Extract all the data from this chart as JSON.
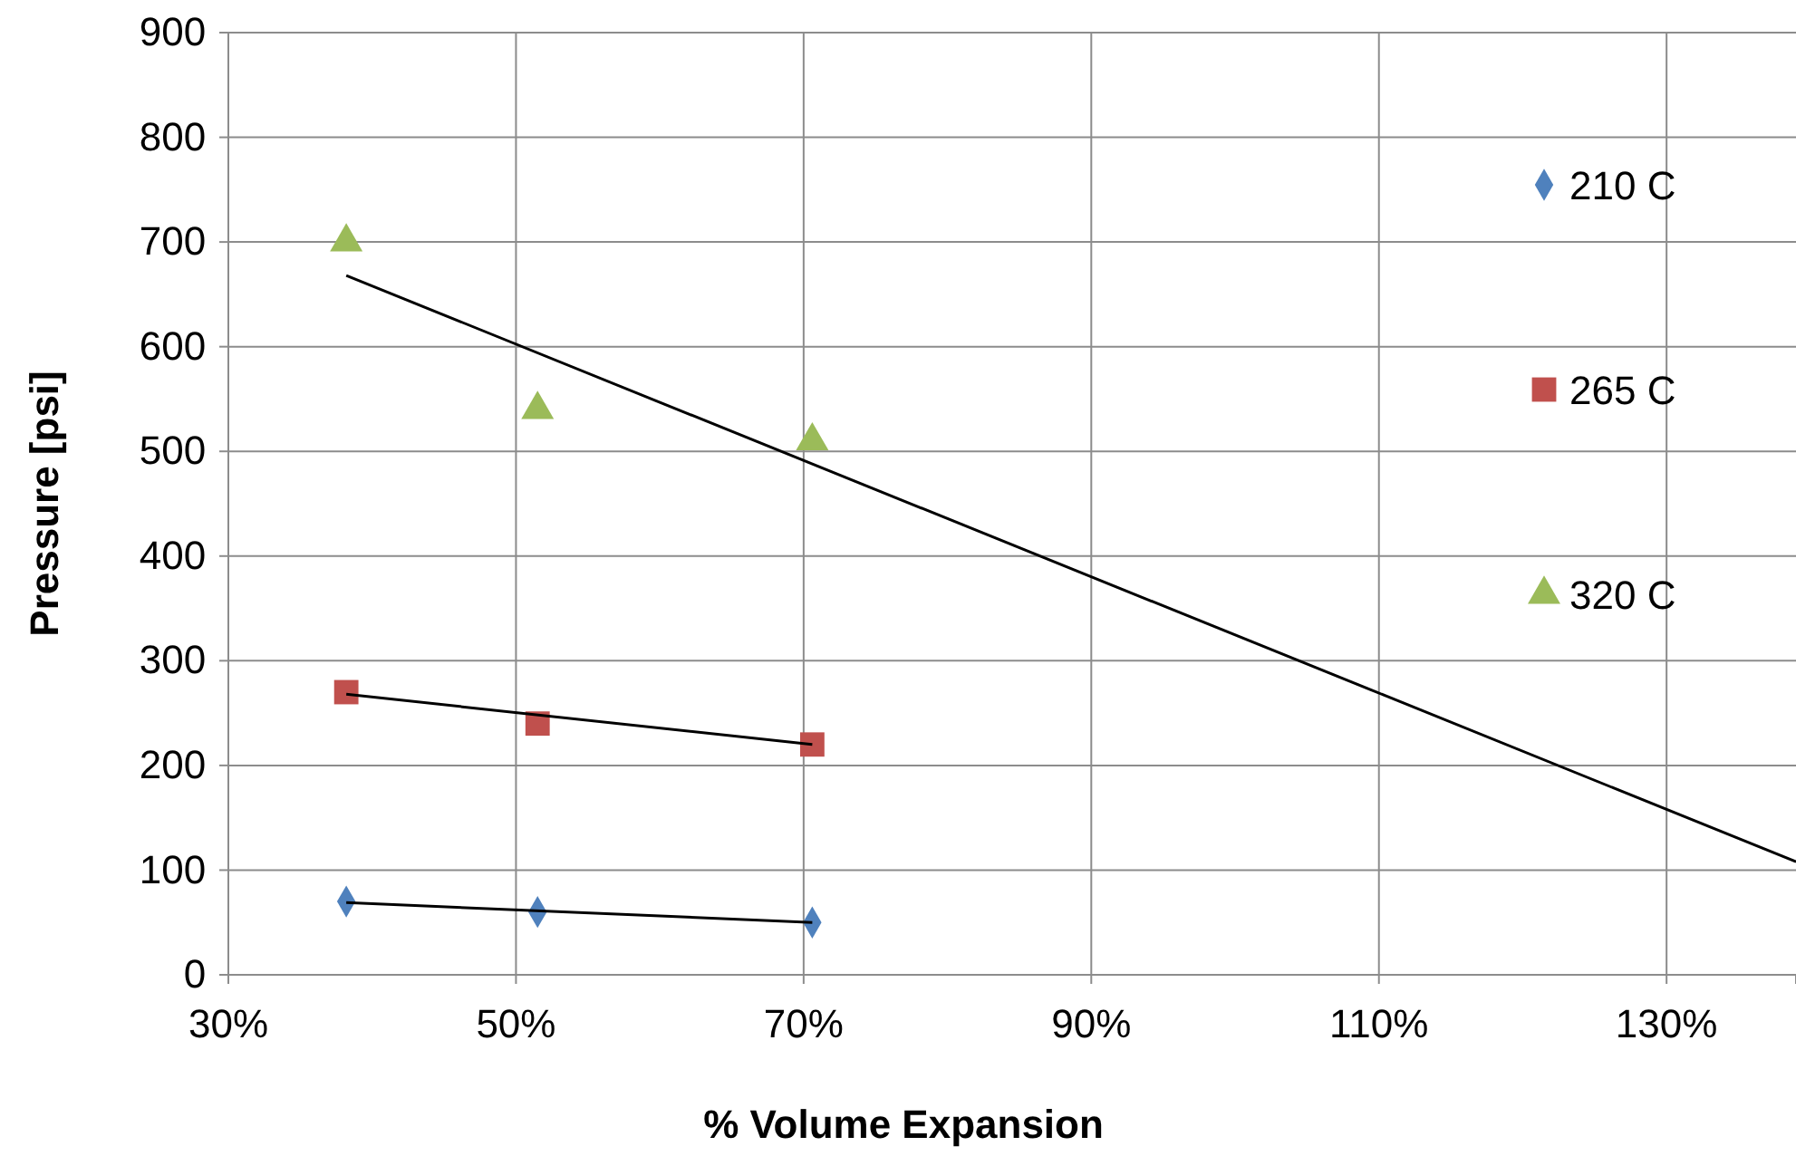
{
  "chart_data": {
    "type": "scatter",
    "xlabel": "% Volume Expansion",
    "ylabel": "Pressure [psi]",
    "xlim": [
      30,
      139
    ],
    "ylim": [
      0,
      900
    ],
    "xticks": [
      {
        "value": 30,
        "label": "30%"
      },
      {
        "value": 50,
        "label": "50%"
      },
      {
        "value": 70,
        "label": "70%"
      },
      {
        "value": 90,
        "label": "90%"
      },
      {
        "value": 110,
        "label": "110%"
      },
      {
        "value": 130,
        "label": "130%"
      }
    ],
    "yticks": [
      0,
      100,
      200,
      300,
      400,
      500,
      600,
      700,
      800,
      900
    ],
    "grid": true,
    "legend": "right",
    "series": [
      {
        "name": "210 C",
        "color": "#4f81bd",
        "marker": "diamond",
        "x": [
          38.2,
          51.5,
          70.6
        ],
        "values": [
          70,
          60,
          50
        ]
      },
      {
        "name": "265 C",
        "color": "#c0504d",
        "marker": "square",
        "x": [
          38.2,
          51.5,
          70.6
        ],
        "values": [
          270,
          240,
          220
        ]
      },
      {
        "name": "320 C",
        "color": "#9bbb59",
        "marker": "triangle",
        "x": [
          38.2,
          51.5,
          70.6
        ],
        "values": [
          700,
          540,
          510
        ]
      },
      {
        "type": "line",
        "color": "#000000",
        "marker": "none",
        "x": [
          38.2,
          70.6
        ],
        "values": [
          69,
          50
        ]
      },
      {
        "type": "line",
        "color": "#000000",
        "marker": "none",
        "x": [
          38.2,
          70.6
        ],
        "values": [
          268,
          220
        ]
      },
      {
        "type": "line",
        "color": "#000000",
        "marker": "none",
        "x": [
          38.2,
          139
        ],
        "values": [
          668,
          108
        ]
      }
    ]
  }
}
